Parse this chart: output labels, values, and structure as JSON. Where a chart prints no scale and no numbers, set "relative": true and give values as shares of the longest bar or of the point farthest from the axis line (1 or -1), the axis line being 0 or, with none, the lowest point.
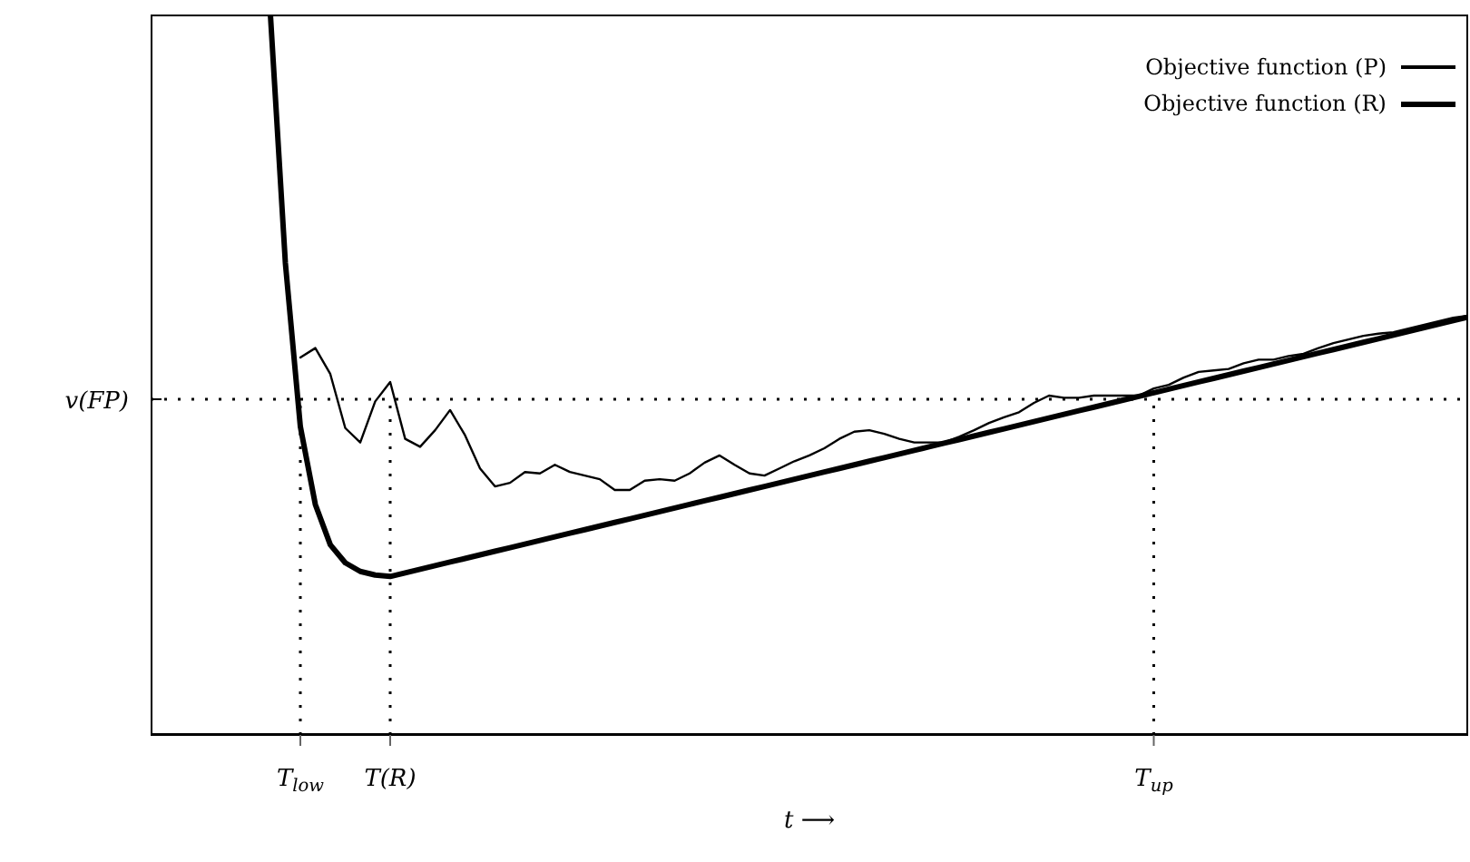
{
  "chart_data": {
    "type": "line",
    "relative": true,
    "xlabel": "t ⟶",
    "legend": "top right",
    "marker": "none",
    "line_style": "solid",
    "categories": [
      null,
      null,
      null,
      null,
      null,
      null,
      null,
      null,
      null,
      null,
      "T$_{low}$",
      null,
      null,
      null,
      null,
      null,
      "T(R)",
      null,
      null,
      null,
      null,
      null,
      null,
      null,
      null,
      null,
      null,
      null,
      null,
      null,
      null,
      null,
      null,
      null,
      null,
      null,
      null,
      null,
      null,
      null,
      null,
      null,
      null,
      null,
      null,
      null,
      null,
      null,
      null,
      null,
      null,
      null,
      null,
      null,
      null,
      null,
      null,
      null,
      null,
      null,
      null,
      null,
      null,
      null,
      null,
      null,
      null,
      "T$_{up}$",
      null,
      null,
      null,
      null,
      null,
      null,
      null,
      null,
      null,
      null,
      null,
      null,
      null,
      null,
      null,
      null,
      null,
      null,
      null,
      null,
      null
    ],
    "series": [
      {
        "name": "Objective function (P)",
        "color": "#000000",
        "values": [
          null,
          null,
          null,
          null,
          null,
          null,
          null,
          null,
          null,
          null,
          0.524,
          0.537,
          0.501,
          0.426,
          0.406,
          0.463,
          0.49,
          0.411,
          0.4,
          0.423,
          0.451,
          0.416,
          0.37,
          0.345,
          0.35,
          0.365,
          0.363,
          0.375,
          0.365,
          0.36,
          0.355,
          0.34,
          0.34,
          0.353,
          0.355,
          0.353,
          0.363,
          0.378,
          0.388,
          0.375,
          0.363,
          0.36,
          0.37,
          0.38,
          0.388,
          0.398,
          0.411,
          0.421,
          0.423,
          0.418,
          0.411,
          0.406,
          0.406,
          0.406,
          0.414,
          0.423,
          0.433,
          0.441,
          0.448,
          0.461,
          0.471,
          0.468,
          0.468,
          0.471,
          0.471,
          0.471,
          0.471,
          0.481,
          0.486,
          0.496,
          0.504,
          0.506,
          0.508,
          0.516,
          0.521,
          0.521,
          0.526,
          0.529,
          0.537,
          0.544,
          0.549,
          0.554,
          0.557,
          0.559,
          0.564,
          0.569,
          0.574,
          0.579,
          0.582
        ]
      },
      {
        "name": "Objective function (R)",
        "color": "#000000",
        "values": [
          null,
          null,
          null,
          null,
          null,
          null,
          null,
          null,
          1.0,
          0.655,
          0.428,
          0.32,
          0.264,
          0.239,
          0.227,
          0.222,
          0.22,
          0.225,
          0.23,
          0.235,
          0.24,
          0.245,
          0.25,
          0.255,
          0.26,
          0.265,
          0.27,
          0.275,
          0.28,
          0.285,
          0.29,
          0.295,
          0.3,
          0.305,
          0.31,
          0.315,
          0.32,
          0.325,
          0.33,
          0.335,
          0.34,
          0.345,
          0.35,
          0.355,
          0.36,
          0.365,
          0.37,
          0.375,
          0.38,
          0.385,
          0.39,
          0.395,
          0.4,
          0.405,
          0.41,
          0.415,
          0.42,
          0.425,
          0.43,
          0.435,
          0.44,
          0.445,
          0.45,
          0.455,
          0.46,
          0.465,
          0.47,
          0.475,
          0.48,
          0.485,
          0.49,
          0.495,
          0.5,
          0.505,
          0.51,
          0.515,
          0.52,
          0.525,
          0.53,
          0.535,
          0.54,
          0.545,
          0.55,
          0.555,
          0.56,
          0.565,
          0.57,
          0.575,
          0.58
        ]
      }
    ],
    "ref_lines": [
      {
        "axis": "y",
        "value": 0.466,
        "label": "v(FP)",
        "line_style": "dotted"
      },
      {
        "axis": "x",
        "value": "T$_{low}$",
        "line_style": "dotted"
      },
      {
        "axis": "x",
        "value": "T(R)",
        "line_style": "dotted"
      },
      {
        "axis": "x",
        "value": "T$_{up}$",
        "line_style": "dotted"
      }
    ]
  }
}
